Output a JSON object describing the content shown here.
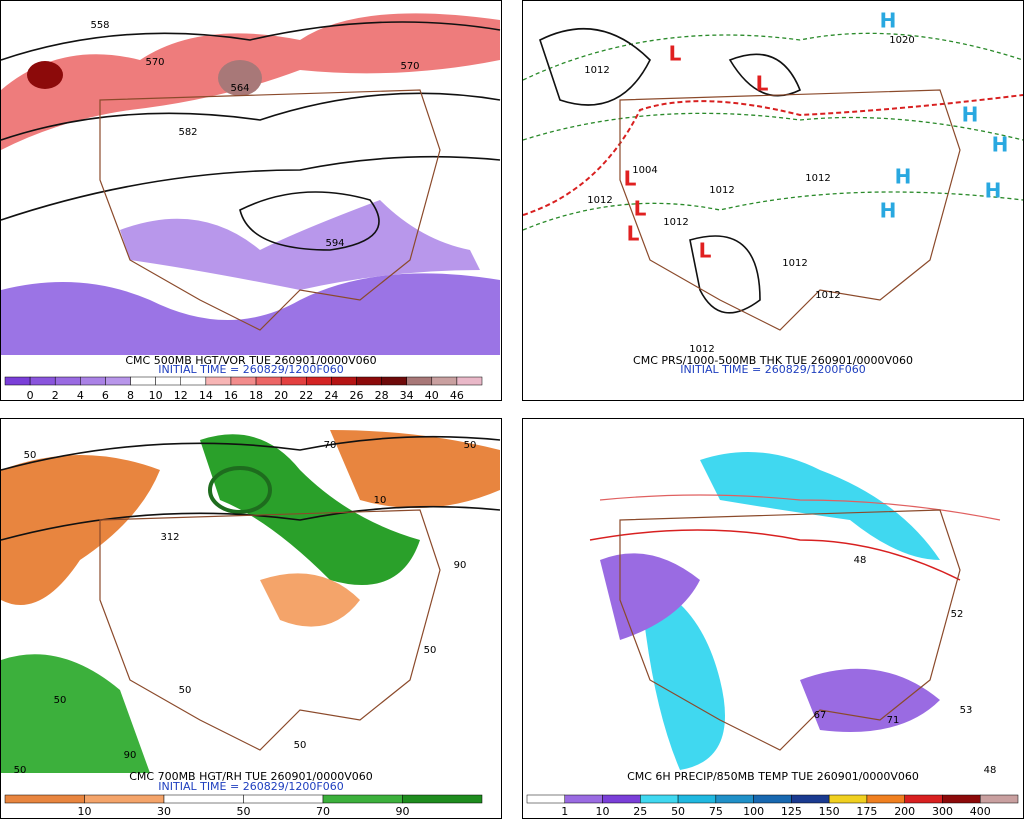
{
  "panels": [
    {
      "caption": "CMC 500MB HGT/VOR TUE 260901/0000V060",
      "initial": "INITIAL TIME = 260829/1200F060",
      "colorbar": {
        "labels": [
          0,
          2,
          4,
          6,
          8,
          10,
          12,
          14,
          16,
          18,
          20,
          22,
          24,
          26,
          28,
          34,
          40,
          46
        ],
        "colors": [
          "#7a3fd8",
          "#8a55dd",
          "#9a6be2",
          "#aa82e6",
          "#b896ea",
          "#ffffff",
          "#ffffff",
          "#ffffff",
          "#f7b5b5",
          "#f28c8c",
          "#ec6666",
          "#e34040",
          "#d42424",
          "#b51414",
          "#8c0a0a",
          "#6e0a0a",
          "#a87878",
          "#c9a0a0",
          "#e9b8c8"
        ]
      },
      "map_labels": [
        "558",
        "570",
        "564",
        "570",
        "582",
        "594"
      ]
    },
    {
      "caption": "CMC PRS/1000-500MB THK TUE 260901/0000V060",
      "initial": "INITIAL TIME = 260829/1200F060",
      "map_labels": [
        "1012",
        "1004",
        "1012",
        "1012",
        "1012",
        "1012",
        "1012",
        "1012",
        "1020",
        "1012",
        "L",
        "L",
        "L",
        "L",
        "L",
        "L",
        "H",
        "H",
        "H",
        "H",
        "H",
        "H"
      ]
    },
    {
      "caption": "CMC 700MB HGT/RH TUE 260901/0000V060",
      "initial": "INITIAL TIME = 260829/1200F060",
      "colorbar": {
        "labels": [
          10,
          30,
          50,
          70,
          90
        ],
        "colors": [
          "#e8853f",
          "#f4a46a",
          "#ffffff",
          "#ffffff",
          "#3cb03c",
          "#1e8c1e"
        ]
      },
      "map_labels": [
        "50",
        "70",
        "10",
        "50",
        "90",
        "50",
        "50",
        "90",
        "312",
        "50",
        "50",
        "50"
      ]
    },
    {
      "caption": "CMC 6H PRECIP/850MB TEMP TUE 260901/0000V060",
      "colorbar": {
        "labels": [
          1,
          10,
          25,
          50,
          75,
          100,
          125,
          150,
          175,
          200,
          300,
          400
        ],
        "colors": [
          "#ffffff",
          "#9a6be2",
          "#7a3fd8",
          "#40d8f0",
          "#20b8e0",
          "#2090c8",
          "#1868b0",
          "#1a3a90",
          "#f0d020",
          "#f08020",
          "#d82020",
          "#8c0a0a",
          "#c9a0a0"
        ]
      },
      "map_labels": [
        "67",
        "71",
        "48",
        "52",
        "53",
        "48"
      ]
    }
  ]
}
